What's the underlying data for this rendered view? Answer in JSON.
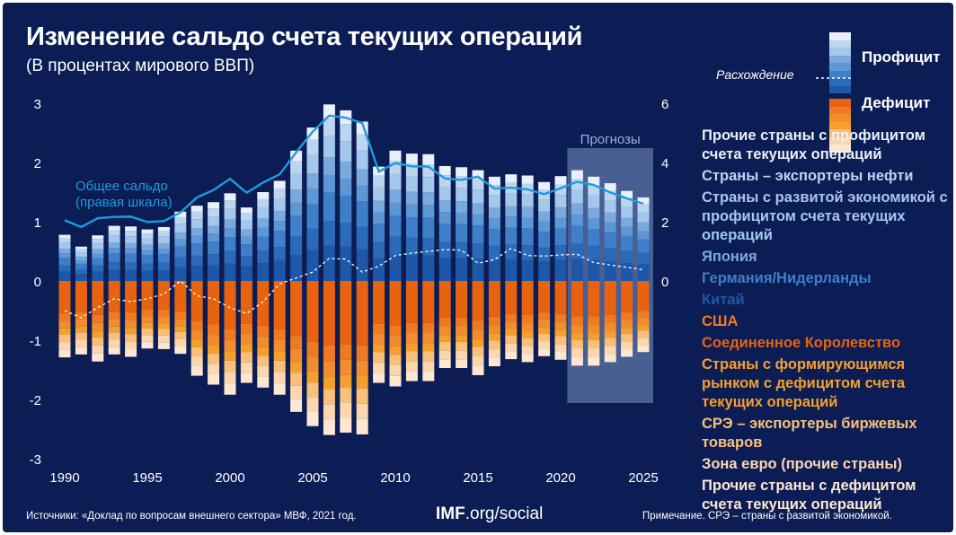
{
  "title": "Изменение сальдо счета текущих операций",
  "subtitle": "(В процентах мирового ВВП)",
  "legend_key": {
    "surplus": "Профицит",
    "discrepancy": "Расхождение",
    "deficit": "Дефицит"
  },
  "legend_items": [
    {
      "label": "Прочие страны с профицитом счета текущих операций",
      "color": "#e9f0fb"
    },
    {
      "label": "Страны – экспортеры нефти",
      "color": "#bcd5f1"
    },
    {
      "label": "Страны с развитой экономикой с профицитом счета текущих операций",
      "color": "#a4c7ec"
    },
    {
      "label": "Япония",
      "color": "#7aa9df"
    },
    {
      "label": "Германия/Нидерланды",
      "color": "#3f7fc9"
    },
    {
      "label": "Китай",
      "color": "#1f57a8"
    },
    {
      "label": "США",
      "color": "#f07a22"
    },
    {
      "label": "Соединенное Королевство",
      "color": "#e8630f"
    },
    {
      "label": "Страны с формирующимся рынком с дефицитом счета текущих операций",
      "color": "#f5a02c"
    },
    {
      "label": "СРЭ – экспортеры биржевых товаров",
      "color": "#f9c07a"
    },
    {
      "label": "Зона евро (прочие страны)",
      "color": "#fbd7b0"
    },
    {
      "label": "Прочие страны с дефицитом счета текущих операций",
      "color": "#fde7d2"
    }
  ],
  "colors": {
    "background": "#0b1d54",
    "surplus": [
      "#1f57a8",
      "#2a6ab8",
      "#3f7fc9",
      "#5d97d6",
      "#7aa9df",
      "#a4c7ec",
      "#bcd5f1",
      "#e9f0fb"
    ],
    "deficit": [
      "#e8630f",
      "#f07a22",
      "#f28d2e",
      "#f5a02c",
      "#f9c07a",
      "#fbd7b0",
      "#fde7d2"
    ],
    "line": "#1e9be0",
    "discrepancy": "#ffffff",
    "forecast_box": "#5d76a8"
  },
  "annotations": {
    "total_balance": "Общее сальдо (правая шкала)",
    "forecast": "Прогнозы"
  },
  "footer": {
    "sources": "Источники: «Доклад по вопросам внешнего сектора» МВФ, 2021 год.",
    "brand_bold": "IMF",
    "brand_rest": ".org/social",
    "note": "Примечание. СРЭ – страны с развитой экономикой."
  },
  "chart_data": {
    "type": "bar",
    "years": [
      1990,
      1991,
      1992,
      1993,
      1994,
      1995,
      1996,
      1997,
      1998,
      1999,
      2000,
      2001,
      2002,
      2003,
      2004,
      2005,
      2006,
      2007,
      2008,
      2009,
      2010,
      2011,
      2012,
      2013,
      2014,
      2015,
      2016,
      2017,
      2018,
      2019,
      2020,
      2021,
      2022,
      2023,
      2024,
      2025,
      2026
    ],
    "x_ticks": [
      1990,
      1995,
      2000,
      2005,
      2010,
      2015,
      2020,
      2025
    ],
    "left_axis": {
      "ticks": [
        3,
        2,
        1,
        0,
        -1,
        -2,
        -3
      ],
      "ylim": [
        -3,
        3
      ]
    },
    "right_axis": {
      "ticks": [
        6,
        4,
        2,
        0
      ],
      "ylim": [
        -6,
        6
      ]
    },
    "surplus": [
      0.78,
      0.58,
      0.77,
      0.93,
      0.92,
      0.87,
      0.91,
      1.17,
      1.27,
      1.33,
      1.48,
      1.24,
      1.5,
      1.69,
      2.2,
      2.59,
      2.98,
      2.88,
      2.69,
      1.93,
      2.2,
      2.15,
      2.14,
      1.94,
      1.92,
      1.87,
      1.76,
      1.8,
      1.78,
      1.67,
      1.77,
      1.87,
      1.76,
      1.65,
      1.52,
      1.41,
      1.2
    ],
    "deficit": [
      -1.29,
      -1.24,
      -1.36,
      -1.24,
      -1.28,
      -1.14,
      -1.15,
      -1.23,
      -1.6,
      -1.75,
      -1.92,
      -1.72,
      -1.8,
      -1.92,
      -2.21,
      -2.45,
      -2.6,
      -2.56,
      -2.59,
      -1.72,
      -1.78,
      -1.69,
      -1.69,
      -1.47,
      -1.47,
      -1.59,
      -1.44,
      -1.32,
      -1.37,
      -1.27,
      -1.33,
      -1.43,
      -1.43,
      -1.37,
      -1.28,
      -1.2,
      -1.1
    ],
    "total_balance_right_scale": [
      2.05,
      1.82,
      2.12,
      2.16,
      2.17,
      1.99,
      2.02,
      2.31,
      2.82,
      3.07,
      3.45,
      2.98,
      3.32,
      3.6,
      4.34,
      5.04,
      5.58,
      5.51,
      5.33,
      3.69,
      3.98,
      3.87,
      3.86,
      3.46,
      3.41,
      3.52,
      3.12,
      3.15,
      3.09,
      2.93,
      3.13,
      3.35,
      3.24,
      2.99,
      2.79,
      2.61,
      2.3
    ],
    "discrepancy": [
      -0.5,
      -0.62,
      -0.45,
      -0.3,
      -0.35,
      -0.3,
      -0.22,
      0.0,
      -0.25,
      -0.3,
      -0.45,
      -0.55,
      -0.35,
      -0.05,
      0.05,
      0.15,
      0.38,
      0.37,
      0.15,
      0.25,
      0.43,
      0.47,
      0.5,
      0.53,
      0.52,
      0.3,
      0.36,
      0.55,
      0.43,
      0.42,
      0.44,
      0.45,
      0.31,
      0.27,
      0.23,
      0.19,
      0.15
    ],
    "forecast_from": 2021
  }
}
